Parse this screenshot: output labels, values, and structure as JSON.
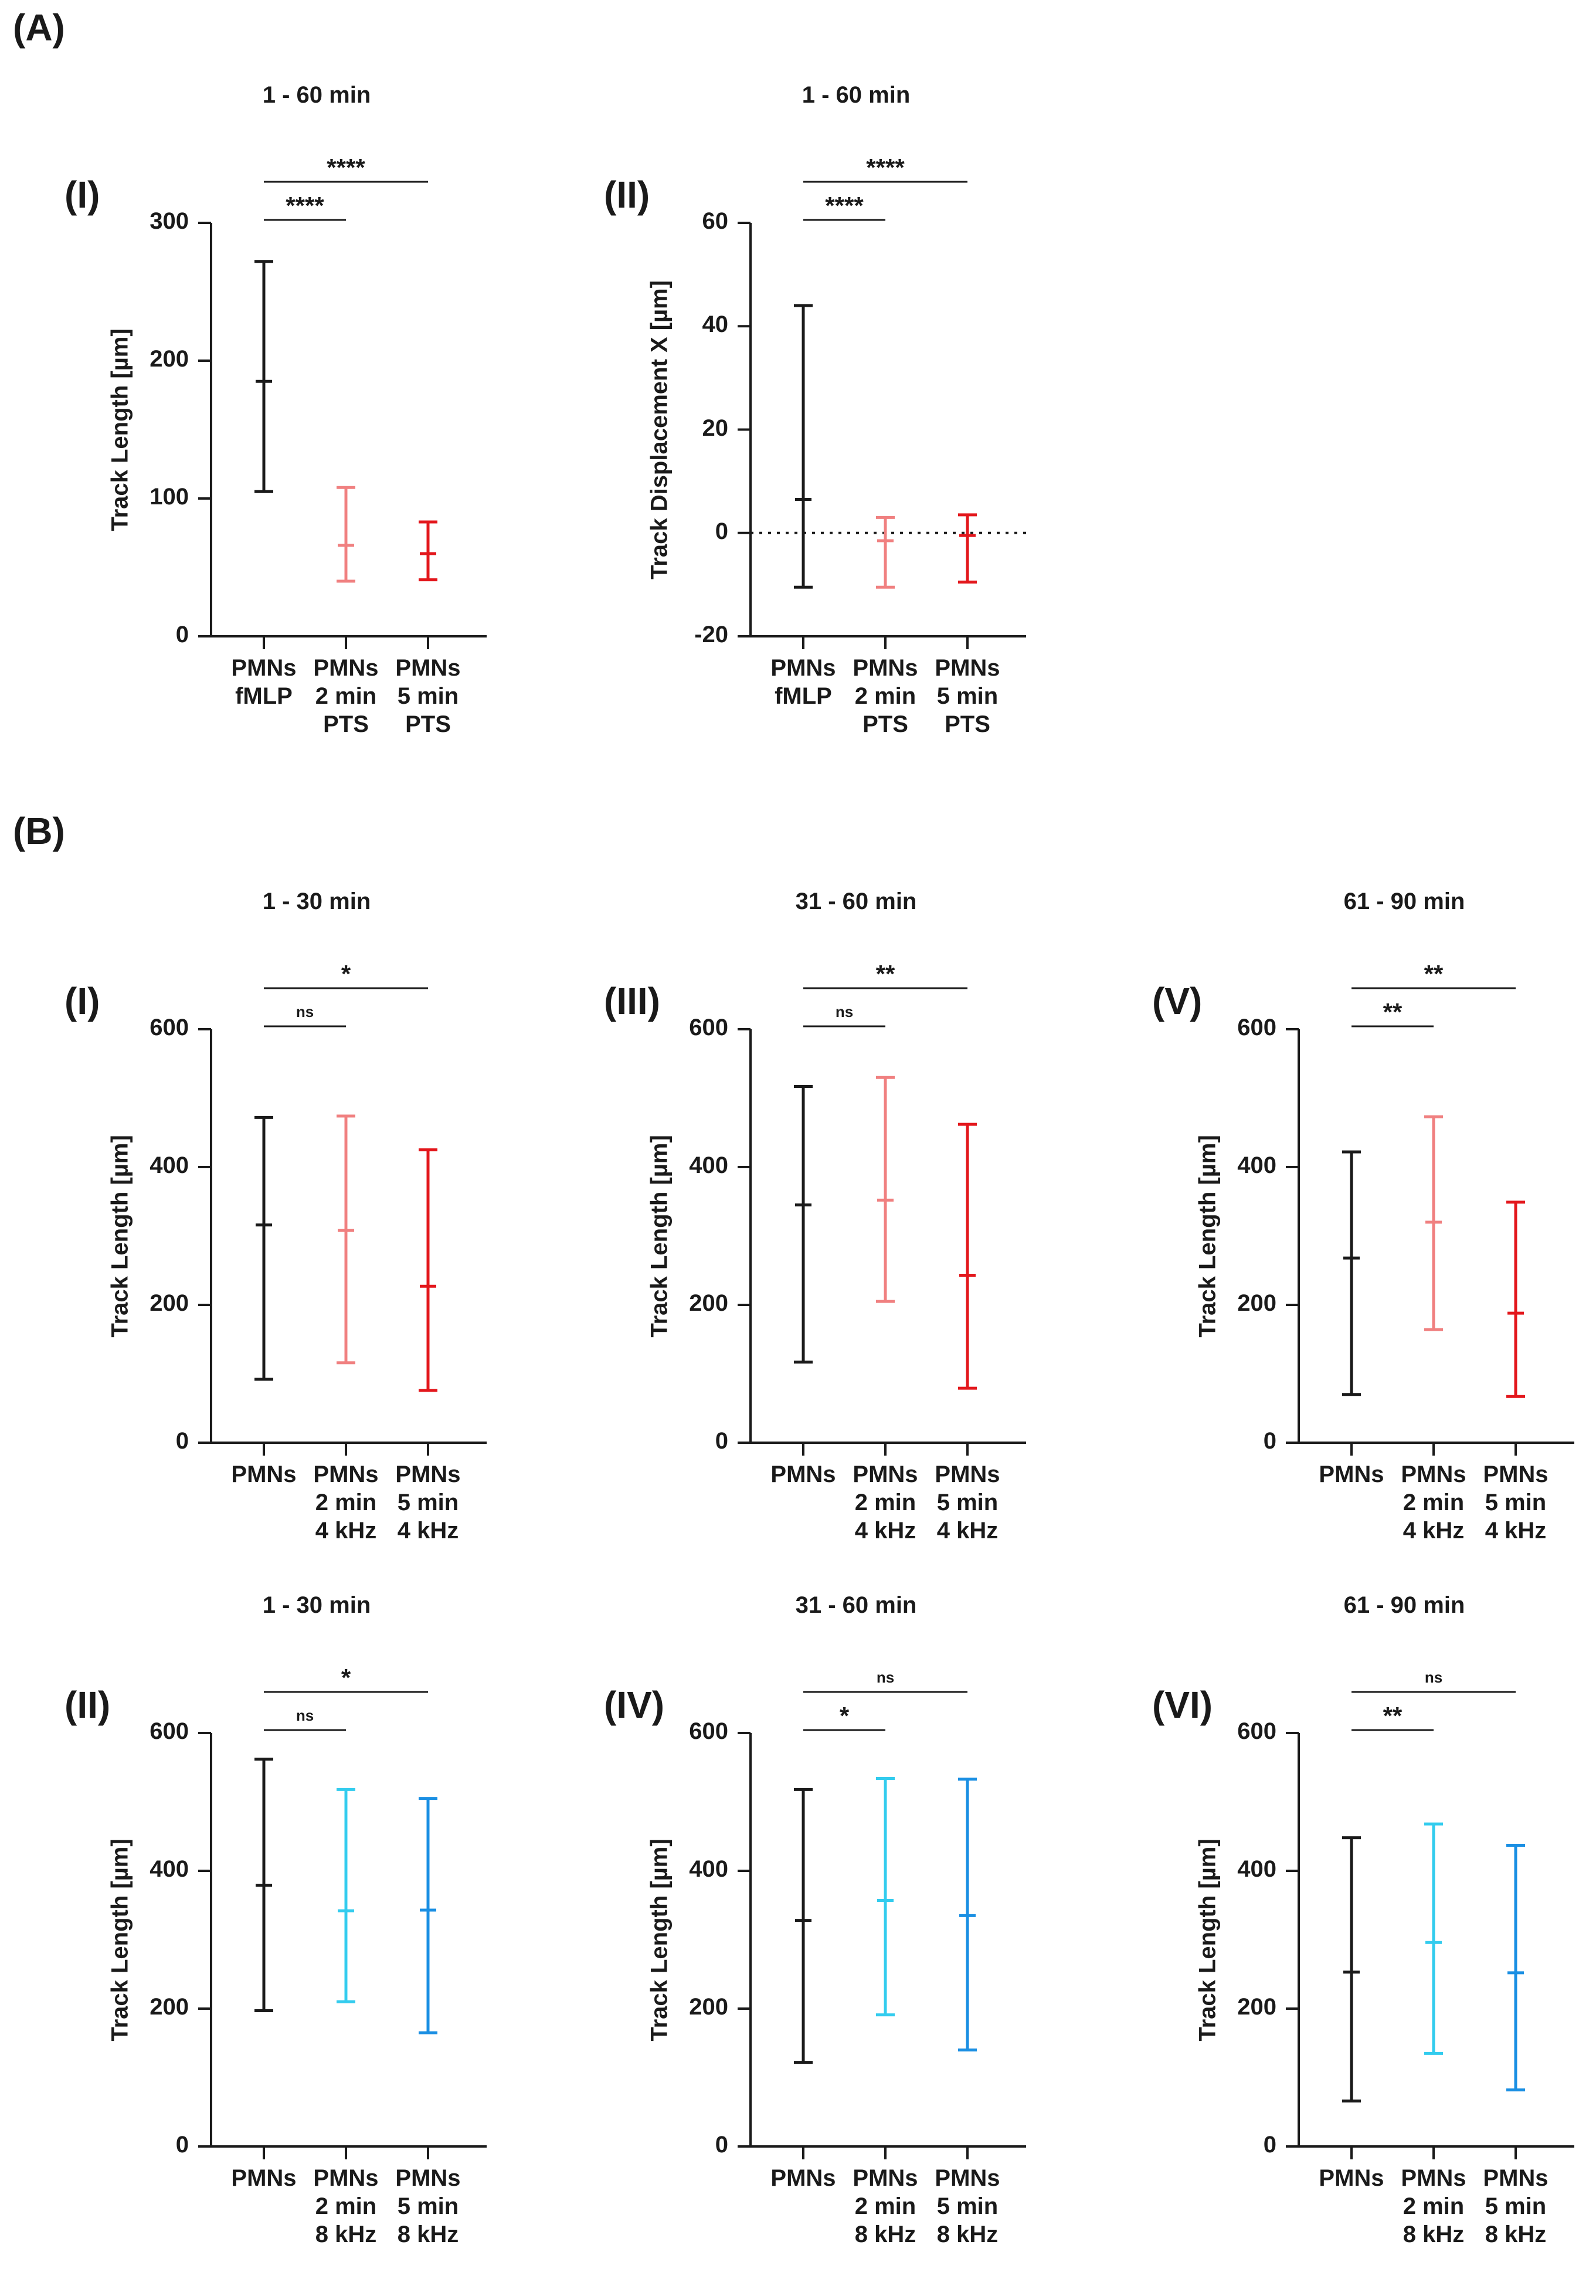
{
  "figure": {
    "section_a_label": "(A)",
    "section_b_label": "(B)"
  },
  "colors": {
    "black": "#1a1a1a",
    "pink": "#f08080",
    "red": "#e3171c",
    "cyan": "#33ccee",
    "blue": "#1a8fe3"
  },
  "chart_data": [
    {
      "id": "A-I",
      "panel_label": "(I)",
      "title": "1 - 60 min",
      "type": "error-bar",
      "ylabel": "Track Length [µm]",
      "ylim": [
        0,
        300
      ],
      "yticks": [
        0,
        100,
        200,
        300
      ],
      "categories": [
        [
          "PMNs",
          "fMLP"
        ],
        [
          "PMNs",
          "2 min",
          "PTS"
        ],
        [
          "PMNs",
          "5 min",
          "PTS"
        ]
      ],
      "series": [
        {
          "name": "PMNs fMLP",
          "color_key": "black",
          "mean": 185,
          "low": 105,
          "high": 272
        },
        {
          "name": "PMNs 2 min PTS",
          "color_key": "pink",
          "mean": 66,
          "low": 40,
          "high": 108
        },
        {
          "name": "PMNs 5 min PTS",
          "color_key": "red",
          "mean": 60,
          "low": 41,
          "high": 83
        }
      ],
      "significance": [
        {
          "from": 0,
          "to": 1,
          "label": "****",
          "level": 1
        },
        {
          "from": 0,
          "to": 2,
          "label": "****",
          "level": 2
        }
      ]
    },
    {
      "id": "A-II",
      "panel_label": "(II)",
      "title": "1 - 60 min",
      "type": "error-bar",
      "ylabel": "Track Displacement X [µm]",
      "ylim": [
        -20,
        60
      ],
      "yticks": [
        -20,
        0,
        20,
        40,
        60
      ],
      "zero_line": true,
      "categories": [
        [
          "PMNs",
          "fMLP"
        ],
        [
          "PMNs",
          "2 min",
          "PTS"
        ],
        [
          "PMNs",
          "5 min",
          "PTS"
        ]
      ],
      "series": [
        {
          "name": "PMNs fMLP",
          "color_key": "black",
          "mean": 6.5,
          "low": -10.5,
          "high": 44
        },
        {
          "name": "PMNs 2 min PTS",
          "color_key": "pink",
          "mean": -1.5,
          "low": -10.5,
          "high": 3
        },
        {
          "name": "PMNs 5 min PTS",
          "color_key": "red",
          "mean": -0.5,
          "low": -9.5,
          "high": 3.5
        }
      ],
      "significance": [
        {
          "from": 0,
          "to": 1,
          "label": "****",
          "level": 1
        },
        {
          "from": 0,
          "to": 2,
          "label": "****",
          "level": 2
        }
      ]
    },
    {
      "id": "B-I",
      "panel_label": "(I)",
      "title": "1 - 30 min",
      "type": "error-bar",
      "ylabel": "Track Length [µm]",
      "ylim": [
        0,
        600
      ],
      "yticks": [
        0,
        200,
        400,
        600
      ],
      "categories": [
        [
          "PMNs"
        ],
        [
          "PMNs",
          "2 min",
          "4 kHz"
        ],
        [
          "PMNs",
          "5 min",
          "4 kHz"
        ]
      ],
      "series": [
        {
          "name": "PMNs",
          "color_key": "black",
          "mean": 316,
          "low": 92,
          "high": 472
        },
        {
          "name": "PMNs 2 min 4 kHz",
          "color_key": "pink",
          "mean": 308,
          "low": 116,
          "high": 474
        },
        {
          "name": "PMNs 5 min 4 kHz",
          "color_key": "red",
          "mean": 227,
          "low": 76,
          "high": 425
        }
      ],
      "significance": [
        {
          "from": 0,
          "to": 1,
          "label": "ns",
          "level": 1
        },
        {
          "from": 0,
          "to": 2,
          "label": "*",
          "level": 2
        }
      ]
    },
    {
      "id": "B-III",
      "panel_label": "(III)",
      "title": "31 - 60 min",
      "type": "error-bar",
      "ylabel": "Track Length [µm]",
      "ylim": [
        0,
        600
      ],
      "yticks": [
        0,
        200,
        400,
        600
      ],
      "categories": [
        [
          "PMNs"
        ],
        [
          "PMNs",
          "2 min",
          "4 kHz"
        ],
        [
          "PMNs",
          "5 min",
          "4 kHz"
        ]
      ],
      "series": [
        {
          "name": "PMNs",
          "color_key": "black",
          "mean": 345,
          "low": 117,
          "high": 517
        },
        {
          "name": "PMNs 2 min 4 kHz",
          "color_key": "pink",
          "mean": 352,
          "low": 205,
          "high": 530
        },
        {
          "name": "PMNs 5 min 4 kHz",
          "color_key": "red",
          "mean": 243,
          "low": 79,
          "high": 462
        }
      ],
      "significance": [
        {
          "from": 0,
          "to": 1,
          "label": "ns",
          "level": 1
        },
        {
          "from": 0,
          "to": 2,
          "label": "**",
          "level": 2
        }
      ]
    },
    {
      "id": "B-V",
      "panel_label": "(V)",
      "title": "61 - 90 min",
      "type": "error-bar",
      "ylabel": "Track Length [µm]",
      "ylim": [
        0,
        600
      ],
      "yticks": [
        0,
        200,
        400,
        600
      ],
      "categories": [
        [
          "PMNs"
        ],
        [
          "PMNs",
          "2 min",
          "4 kHz"
        ],
        [
          "PMNs",
          "5 min",
          "4 kHz"
        ]
      ],
      "series": [
        {
          "name": "PMNs",
          "color_key": "black",
          "mean": 268,
          "low": 70,
          "high": 422
        },
        {
          "name": "PMNs 2 min 4 kHz",
          "color_key": "pink",
          "mean": 320,
          "low": 164,
          "high": 473
        },
        {
          "name": "PMNs 5 min 4 kHz",
          "color_key": "red",
          "mean": 188,
          "low": 67,
          "high": 349
        }
      ],
      "significance": [
        {
          "from": 0,
          "to": 1,
          "label": "**",
          "level": 1
        },
        {
          "from": 0,
          "to": 2,
          "label": "**",
          "level": 2
        }
      ]
    },
    {
      "id": "B-II",
      "panel_label": "(II)",
      "title": "1 - 30 min",
      "type": "error-bar",
      "ylabel": "Track Length [µm]",
      "ylim": [
        0,
        600
      ],
      "yticks": [
        0,
        200,
        400,
        600
      ],
      "categories": [
        [
          "PMNs"
        ],
        [
          "PMNs",
          "2 min",
          "8 kHz"
        ],
        [
          "PMNs",
          "5 min",
          "8 kHz"
        ]
      ],
      "series": [
        {
          "name": "PMNs",
          "color_key": "black",
          "mean": 379,
          "low": 197,
          "high": 562
        },
        {
          "name": "PMNs 2 min 8 kHz",
          "color_key": "cyan",
          "mean": 342,
          "low": 210,
          "high": 518
        },
        {
          "name": "PMNs 5 min 8 kHz",
          "color_key": "blue",
          "mean": 343,
          "low": 165,
          "high": 505
        }
      ],
      "significance": [
        {
          "from": 0,
          "to": 1,
          "label": "ns",
          "level": 1
        },
        {
          "from": 0,
          "to": 2,
          "label": "*",
          "level": 2
        }
      ]
    },
    {
      "id": "B-IV",
      "panel_label": "(IV)",
      "title": "31 - 60 min",
      "type": "error-bar",
      "ylabel": "Track Length [µm]",
      "ylim": [
        0,
        600
      ],
      "yticks": [
        0,
        200,
        400,
        600
      ],
      "categories": [
        [
          "PMNs"
        ],
        [
          "PMNs",
          "2 min",
          "8 kHz"
        ],
        [
          "PMNs",
          "5 min",
          "8 kHz"
        ]
      ],
      "series": [
        {
          "name": "PMNs",
          "color_key": "black",
          "mean": 328,
          "low": 122,
          "high": 518
        },
        {
          "name": "PMNs 2 min 8 kHz",
          "color_key": "cyan",
          "mean": 357,
          "low": 191,
          "high": 534
        },
        {
          "name": "PMNs 5 min 8 kHz",
          "color_key": "blue",
          "mean": 335,
          "low": 140,
          "high": 533
        }
      ],
      "significance": [
        {
          "from": 0,
          "to": 1,
          "label": "*",
          "level": 1
        },
        {
          "from": 0,
          "to": 2,
          "label": "ns",
          "level": 2
        }
      ]
    },
    {
      "id": "B-VI",
      "panel_label": "(VI)",
      "title": "61 - 90 min",
      "type": "error-bar",
      "ylabel": "Track Length [µm]",
      "ylim": [
        0,
        600
      ],
      "yticks": [
        0,
        200,
        400,
        600
      ],
      "categories": [
        [
          "PMNs"
        ],
        [
          "PMNs",
          "2 min",
          "8 kHz"
        ],
        [
          "PMNs",
          "5 min",
          "8 kHz"
        ]
      ],
      "series": [
        {
          "name": "PMNs",
          "color_key": "black",
          "mean": 253,
          "low": 66,
          "high": 448
        },
        {
          "name": "PMNs 2 min 8 kHz",
          "color_key": "cyan",
          "mean": 296,
          "low": 135,
          "high": 468
        },
        {
          "name": "PMNs 5 min 8 kHz",
          "color_key": "blue",
          "mean": 252,
          "low": 82,
          "high": 437
        }
      ],
      "significance": [
        {
          "from": 0,
          "to": 1,
          "label": "**",
          "level": 1
        },
        {
          "from": 0,
          "to": 2,
          "label": "ns",
          "level": 2
        }
      ]
    }
  ]
}
